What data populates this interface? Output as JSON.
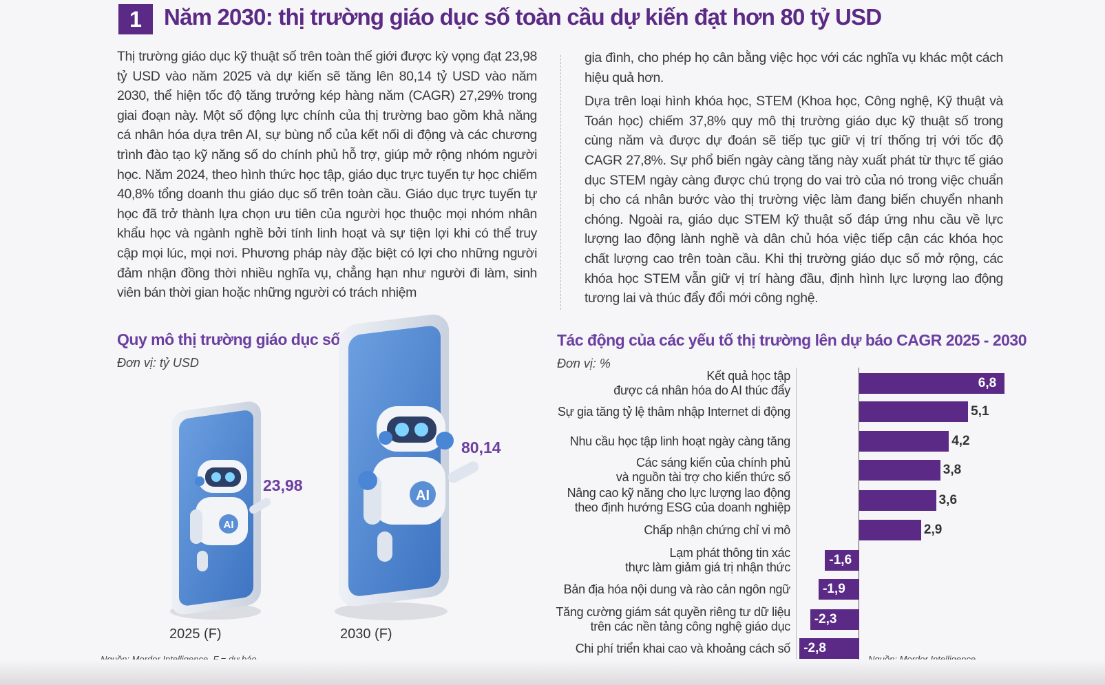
{
  "header": {
    "number": "1",
    "title": "Năm 2030: thị trường giáo dục số toàn cầu dự kiến đạt hơn 80 tỷ USD"
  },
  "article": {
    "col1": "Thị trường giáo dục kỹ thuật số trên toàn thế giới được kỳ vọng đạt 23,98 tỷ USD vào năm 2025 và dự kiến sẽ tăng lên 80,14 tỷ USD vào năm 2030, thể hiện tốc độ tăng trưởng kép hàng năm (CAGR) 27,29% trong giai đoạn này. Một số động lực chính của thị trường bao gồm khả năng cá nhân hóa dựa trên AI, sự bùng nổ của kết nối di động và các chương trình đào tạo kỹ năng số do chính phủ hỗ trợ, giúp mở rộng nhóm người học. Năm 2024, theo hình thức học tập, giáo dục trực tuyến tự học chiếm 40,8% tổng doanh thu giáo dục số trên toàn cầu. Giáo dục trực tuyến tự học đã trở thành lựa chọn ưu tiên của người học thuộc mọi nhóm nhân khẩu học và ngành nghề bởi tính linh hoạt và sự tiện lợi khi có thể truy cập mọi lúc, mọi nơi. Phương pháp này đặc biệt có lợi cho những người đảm nhận đồng thời nhiều nghĩa vụ, chẳng hạn như người đi làm, sinh viên bán thời gian hoặc những người có trách nhiệm",
    "col2_p1": "gia đình, cho phép họ cân bằng việc học với các nghĩa vụ khác một cách hiệu quả hơn.",
    "col2_p2": "Dựa trên loại hình khóa học, STEM (Khoa học, Công nghệ, Kỹ thuật và Toán học) chiếm 37,8% quy mô thị trường giáo dục kỹ thuật số trong cùng năm và được dự đoán sẽ tiếp tục giữ vị trí thống trị với tốc độ CAGR 27,8%. Sự phổ biến ngày càng tăng này xuất phát từ thực tế giáo dục STEM ngày càng được chú trọng do vai trò của nó trong việc chuẩn bị cho cá nhân bước vào thị trường việc làm đang biến chuyển nhanh chóng. Ngoài ra, giáo dục STEM kỹ thuật số đáp ứng nhu cầu về lực lượng lao động lành nghề và dân chủ hóa việc tiếp cận các khóa học chất lượng cao trên toàn cầu. Khi thị trường giáo dục số mở rộng, các khóa học STEM vẫn giữ vị trí hàng đầu, định hình lực lượng lao động tương lai và thúc đẩy đổi mới công nghệ."
  },
  "colors": {
    "accent": "#5b2a86",
    "label": "#6b3fa0",
    "phone_screen": "#5a8fd6"
  },
  "chart_data": [
    {
      "type": "bar",
      "title": "Quy mô thị trường giáo dục số toàn cầu",
      "unit": "Đơn vị: tỷ USD",
      "categories": [
        "2025 (F)",
        "2030 (F)"
      ],
      "values": [
        23.98,
        80.14
      ],
      "value_labels": [
        "23,98",
        "80,14"
      ],
      "source": "Nguồn: Mordor Intelligence, F = dự báo"
    },
    {
      "type": "bar",
      "orientation": "horizontal",
      "title": "Tác động của các yếu tố thị trường lên dự báo CAGR 2025 - 2030",
      "unit": "Đơn vị: %",
      "categories": [
        "Kết quả học tập\nđược cá nhân hóa do AI thúc đẩy",
        "Sự gia tăng tỷ lệ thâm nhập Internet di động",
        "Nhu cầu học tập linh hoạt ngày càng tăng",
        "Các sáng kiến của chính phủ\nvà nguồn tài trợ cho kiến thức số",
        "Nâng cao kỹ năng cho lực lượng lao động\ntheo định hướng ESG của doanh nghiệp",
        "Chấp nhận chứng chỉ vi mô",
        "Lạm phát thông tin xác\nthực làm giảm giá trị nhận thức",
        "Bản địa hóa nội dung và rào cản ngôn ngữ",
        "Tăng cường giám sát quyền riêng tư dữ liệu\ntrên các nền tảng công nghệ giáo dục",
        "Chi phí triển khai cao và khoảng cách số"
      ],
      "values": [
        6.8,
        5.1,
        4.2,
        3.8,
        3.6,
        2.9,
        -1.6,
        -1.9,
        -2.3,
        -2.8
      ],
      "value_labels": [
        "6,8",
        "5,1",
        "4,2",
        "3,8",
        "3,6",
        "2,9",
        "-1,6",
        "-1,9",
        "-2,3",
        "-2,8"
      ],
      "source": "Nguồn: Mordor Intelligence"
    }
  ]
}
